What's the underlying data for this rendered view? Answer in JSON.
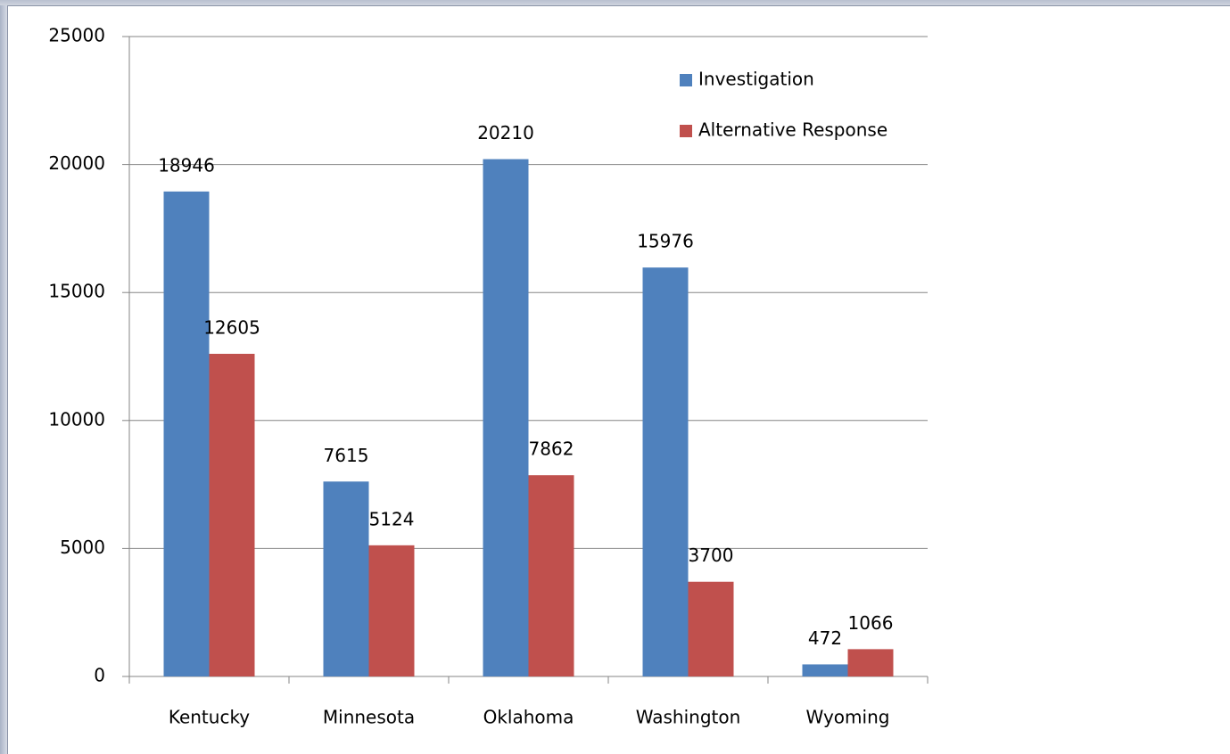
{
  "chart_data": {
    "type": "bar",
    "categories": [
      "Kentucky",
      "Minnesota",
      "Oklahoma",
      "Washington",
      "Wyoming"
    ],
    "series": [
      {
        "name": "Investigation",
        "color": "#4f81bd",
        "values": [
          18946,
          7615,
          20210,
          15976,
          472
        ]
      },
      {
        "name": "Alternative Response",
        "color": "#c0504d",
        "values": [
          12605,
          5124,
          7862,
          3700,
          1066
        ]
      }
    ],
    "ylim": [
      0,
      25000
    ],
    "yticks": [
      0,
      5000,
      10000,
      15000,
      20000,
      25000
    ],
    "grid": true,
    "legend": "upper right"
  }
}
